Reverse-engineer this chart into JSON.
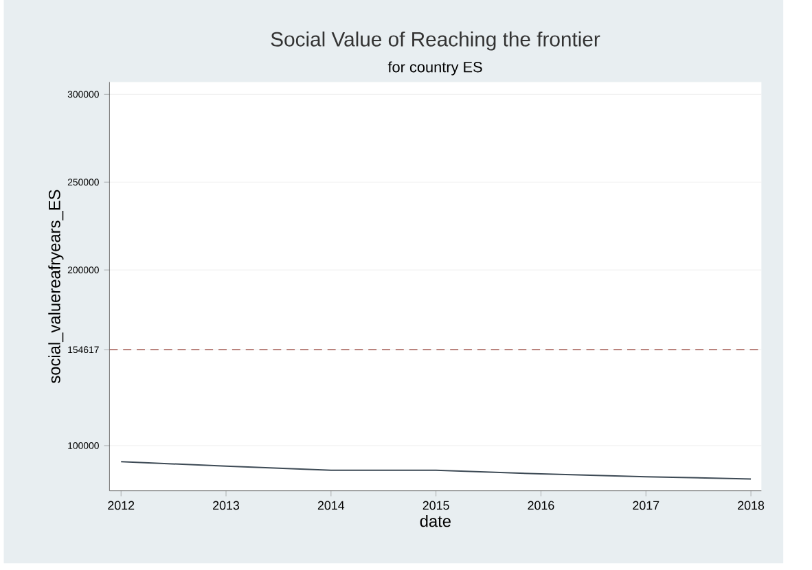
{
  "chart_data": {
    "type": "line",
    "title": "Social Value of Reaching the frontier",
    "subtitle": "for country ES",
    "xlabel": "date",
    "ylabel": "social_valuereafryears_ES",
    "x": [
      2012,
      2013,
      2014,
      2015,
      2016,
      2017,
      2018
    ],
    "series": [
      {
        "color": "#3d4a55",
        "values": [
          90900,
          88300,
          86000,
          86000,
          83900,
          82300,
          81000
        ]
      }
    ],
    "xlim": [
      2011.89,
      2018.1
    ],
    "ylim": [
      74300,
      307000
    ],
    "xticks": [
      2012,
      2013,
      2014,
      2015,
      2016,
      2017,
      2018
    ],
    "yticks": [
      100000,
      154617,
      200000,
      250000,
      300000
    ],
    "ref_lines": [
      {
        "axis": "y",
        "value": 154617,
        "color": "#a0524a",
        "line_style": "dashed"
      }
    ],
    "grid": "y",
    "marker": "none",
    "line_style": "solid"
  }
}
